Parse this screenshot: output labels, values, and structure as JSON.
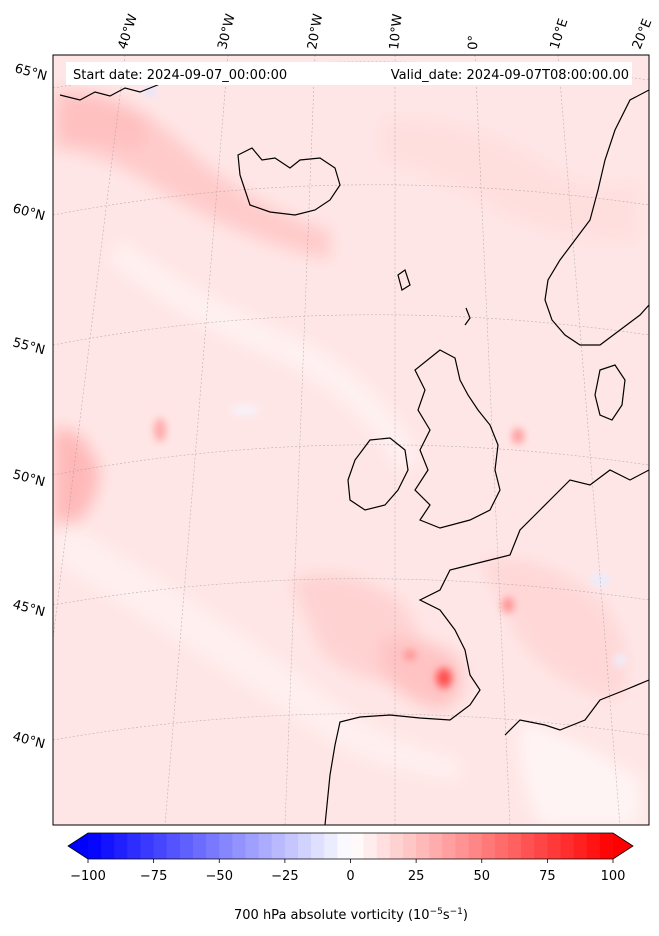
{
  "map": {
    "start_date_label": "Start date: 2024-09-07_00:00:00",
    "valid_date_label": "Valid_date: 2024-09-07T08:00:00.00",
    "field_variable": "700 hPa absolute vorticity",
    "colormap": "bwr",
    "lat_labels": [
      "65°N",
      "60°N",
      "55°N",
      "50°N",
      "45°N",
      "40°N"
    ],
    "lon_labels": [
      "40°W",
      "30°W",
      "20°W",
      "10°W",
      "0°",
      "10°E",
      "20°E"
    ],
    "colorbar": {
      "label_prefix": "700 hPa absolute vorticity (10",
      "label_exp1": "−5",
      "label_mid": "s",
      "label_exp2": "−1",
      "label_suffix": ")",
      "ticks": [
        "−100",
        "−75",
        "−50",
        "−25",
        "0",
        "25",
        "50",
        "75",
        "100"
      ],
      "min": -100,
      "max": 100,
      "extend": "both",
      "colors": {
        "min": "#0000ff",
        "center": "#ffffff",
        "max": "#ff0000"
      }
    }
  }
}
